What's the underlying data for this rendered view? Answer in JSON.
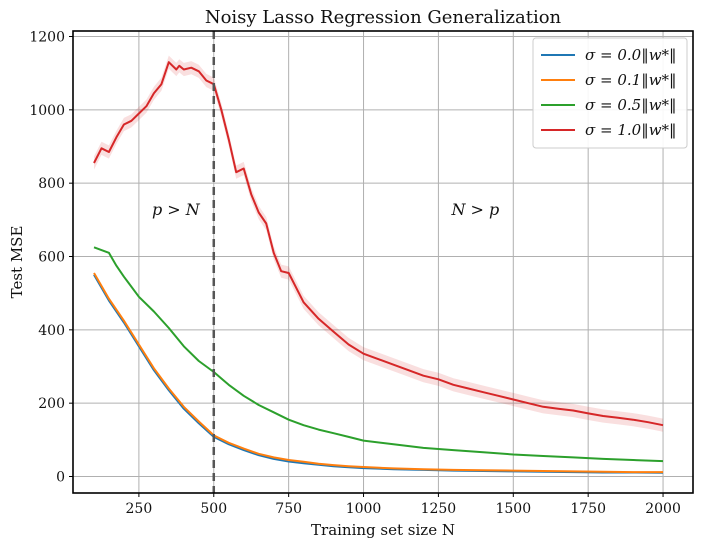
{
  "chart_data": {
    "type": "line",
    "title": "Noisy Lasso Regression Generalization",
    "xlabel": "Training set size N",
    "ylabel": "Test MSE",
    "xlim": [
      30,
      2100
    ],
    "ylim": [
      -45,
      1215
    ],
    "xticks": [
      250,
      500,
      750,
      1000,
      1250,
      1500,
      1750,
      2000
    ],
    "yticks": [
      0,
      200,
      400,
      600,
      800,
      1000,
      1200
    ],
    "grid": true,
    "legend_position": "top-right",
    "vline": {
      "x": 500,
      "style": "dashed",
      "color": "#555555"
    },
    "annotations": [
      {
        "text": "p > N",
        "x": 300,
        "y": 700
      },
      {
        "text": "N > p",
        "x": 1300,
        "y": 700
      }
    ],
    "series": [
      {
        "name": "σ = 0.0‖w*‖",
        "color": "#1f77b4",
        "x": [
          100,
          150,
          200,
          250,
          300,
          350,
          400,
          450,
          500,
          550,
          600,
          650,
          700,
          750,
          800,
          850,
          900,
          950,
          1000,
          1100,
          1200,
          1300,
          1400,
          1500,
          1600,
          1700,
          1800,
          1900,
          2000
        ],
        "y": [
          550,
          480,
          420,
          355,
          290,
          235,
          185,
          145,
          108,
          88,
          72,
          58,
          48,
          41,
          36,
          32,
          28,
          25,
          23,
          20,
          18,
          16,
          15,
          14,
          13,
          12,
          11,
          11,
          10
        ]
      },
      {
        "name": "σ = 0.1‖w*‖",
        "color": "#ff7f0e",
        "x": [
          100,
          150,
          200,
          250,
          300,
          350,
          400,
          450,
          500,
          550,
          600,
          650,
          700,
          750,
          800,
          850,
          900,
          950,
          1000,
          1100,
          1200,
          1300,
          1400,
          1500,
          1600,
          1700,
          1800,
          1900,
          2000
        ],
        "y": [
          555,
          485,
          425,
          360,
          295,
          240,
          190,
          150,
          112,
          92,
          76,
          62,
          52,
          45,
          40,
          35,
          31,
          28,
          26,
          22,
          20,
          18,
          17,
          16,
          15,
          14,
          13,
          12,
          12
        ]
      },
      {
        "name": "σ = 0.5‖w*‖",
        "color": "#2ca02c",
        "x": [
          100,
          150,
          175,
          200,
          250,
          300,
          350,
          400,
          450,
          500,
          550,
          600,
          650,
          700,
          750,
          800,
          850,
          900,
          950,
          1000,
          1100,
          1200,
          1300,
          1400,
          1500,
          1600,
          1700,
          1800,
          1900,
          2000
        ],
        "y": [
          625,
          610,
          575,
          545,
          490,
          450,
          405,
          355,
          315,
          285,
          250,
          220,
          195,
          175,
          155,
          140,
          128,
          118,
          108,
          98,
          88,
          78,
          72,
          66,
          60,
          56,
          52,
          48,
          45,
          42
        ]
      },
      {
        "name": "σ = 1.0‖w*‖",
        "color": "#d62728",
        "x": [
          100,
          125,
          150,
          175,
          200,
          225,
          250,
          275,
          300,
          325,
          350,
          375,
          385,
          400,
          425,
          450,
          475,
          500,
          525,
          550,
          575,
          600,
          625,
          650,
          675,
          700,
          725,
          750,
          800,
          850,
          900,
          950,
          1000,
          1050,
          1100,
          1150,
          1200,
          1250,
          1300,
          1350,
          1400,
          1450,
          1500,
          1550,
          1600,
          1650,
          1700,
          1750,
          1800,
          1850,
          1900,
          1950,
          2000
        ],
        "y": [
          855,
          895,
          885,
          925,
          960,
          970,
          990,
          1010,
          1045,
          1070,
          1130,
          1110,
          1120,
          1110,
          1115,
          1105,
          1080,
          1070,
          1000,
          920,
          830,
          840,
          770,
          720,
          690,
          610,
          560,
          555,
          475,
          430,
          395,
          360,
          335,
          320,
          305,
          290,
          275,
          265,
          250,
          240,
          230,
          220,
          210,
          200,
          190,
          185,
          180,
          172,
          165,
          160,
          155,
          148,
          140
        ]
      }
    ]
  }
}
